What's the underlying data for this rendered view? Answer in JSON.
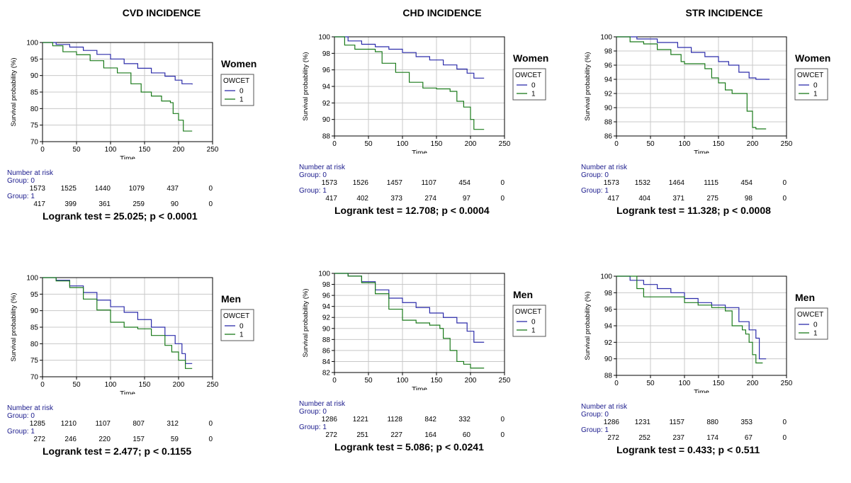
{
  "colors": {
    "group0": "#2c2caa",
    "group1": "#1a7a1a",
    "grid": "#c8c8c8",
    "axis": "#000000",
    "risk_text": "#1a1a8c"
  },
  "columns": [
    {
      "title": "CVD INCIDENCE"
    },
    {
      "title": "CHD INCIDENCE"
    },
    {
      "title": "STR INCIDENCE"
    }
  ],
  "chart_data": [
    {
      "type": "line",
      "id": "cvd-women",
      "sex_label": "Women",
      "xlabel": "Time",
      "ylabel": "Survival probability (%)",
      "xlim": [
        0,
        250
      ],
      "ylim": [
        70,
        100
      ],
      "x_ticks": [
        0,
        50,
        100,
        150,
        200,
        250
      ],
      "y_ticks": [
        70,
        75,
        80,
        85,
        90,
        95,
        100
      ],
      "grid": true,
      "legend_title": "OWCET",
      "legend_position": "right",
      "series": [
        {
          "name": "0",
          "points": [
            [
              0,
              100
            ],
            [
              20,
              99.4
            ],
            [
              40,
              98.6
            ],
            [
              60,
              97.6
            ],
            [
              80,
              96.4
            ],
            [
              100,
              95
            ],
            [
              120,
              93.6
            ],
            [
              140,
              92.2
            ],
            [
              160,
              90.8
            ],
            [
              180,
              89.8
            ],
            [
              195,
              88.6
            ],
            [
              205,
              87.5
            ],
            [
              220,
              87.3
            ]
          ]
        },
        {
          "name": "1",
          "points": [
            [
              0,
              100
            ],
            [
              15,
              99
            ],
            [
              30,
              97.2
            ],
            [
              50,
              96.3
            ],
            [
              70,
              94.5
            ],
            [
              90,
              92.3
            ],
            [
              110,
              90.8
            ],
            [
              130,
              87.5
            ],
            [
              145,
              85
            ],
            [
              160,
              83.8
            ],
            [
              175,
              82.3
            ],
            [
              188,
              81.8
            ],
            [
              192,
              78.5
            ],
            [
              200,
              76.5
            ],
            [
              207,
              73.2
            ],
            [
              220,
              73.2
            ]
          ]
        }
      ],
      "risk": {
        "title": "Number at risk",
        "group0_label": "Group: 0",
        "group1_label": "Group: 1",
        "group0": [
          "1573",
          "1525",
          "1440",
          "1079",
          "437",
          "0"
        ],
        "group1": [
          "417",
          "399",
          "361",
          "259",
          "90",
          "0"
        ]
      },
      "logrank": "Logrank test = 25.025; p < 0.0001"
    },
    {
      "type": "line",
      "id": "chd-women",
      "sex_label": "Women",
      "xlabel": "Time",
      "ylabel": "Survival probability (%)",
      "xlim": [
        0,
        250
      ],
      "ylim": [
        88,
        100
      ],
      "x_ticks": [
        0,
        50,
        100,
        150,
        200,
        250
      ],
      "y_ticks": [
        88,
        90,
        92,
        94,
        96,
        98,
        100
      ],
      "grid": true,
      "legend_title": "OWCET",
      "legend_position": "right",
      "series": [
        {
          "name": "0",
          "points": [
            [
              0,
              100
            ],
            [
              20,
              99.5
            ],
            [
              40,
              99.1
            ],
            [
              60,
              98.8
            ],
            [
              80,
              98.5
            ],
            [
              100,
              98.1
            ],
            [
              120,
              97.6
            ],
            [
              140,
              97.2
            ],
            [
              160,
              96.6
            ],
            [
              180,
              96.1
            ],
            [
              195,
              95.6
            ],
            [
              205,
              95
            ],
            [
              220,
              95
            ]
          ]
        },
        {
          "name": "1",
          "points": [
            [
              0,
              100
            ],
            [
              15,
              99
            ],
            [
              30,
              98.5
            ],
            [
              60,
              98.2
            ],
            [
              70,
              96.8
            ],
            [
              90,
              95.7
            ],
            [
              110,
              94.5
            ],
            [
              130,
              93.8
            ],
            [
              150,
              93.7
            ],
            [
              170,
              93.4
            ],
            [
              180,
              92.2
            ],
            [
              190,
              91.5
            ],
            [
              200,
              90
            ],
            [
              205,
              88.8
            ],
            [
              220,
              88.8
            ]
          ]
        }
      ],
      "risk": {
        "title": "Number at risk",
        "group0_label": "Group: 0",
        "group1_label": "Group: 1",
        "group0": [
          "1573",
          "1526",
          "1457",
          "1107",
          "454",
          "0"
        ],
        "group1": [
          "417",
          "402",
          "373",
          "274",
          "97",
          "0"
        ]
      },
      "logrank": "Logrank test = 12.708; p < 0.0004"
    },
    {
      "type": "line",
      "id": "str-women",
      "sex_label": "Women",
      "xlabel": "Time",
      "ylabel": "Survival probability (%)",
      "xlim": [
        0,
        250
      ],
      "ylim": [
        86,
        100
      ],
      "x_ticks": [
        0,
        50,
        100,
        150,
        200,
        250
      ],
      "y_ticks": [
        86,
        88,
        90,
        92,
        94,
        96,
        98,
        100
      ],
      "grid": true,
      "legend_title": "OWCET",
      "legend_position": "right",
      "series": [
        {
          "name": "0",
          "points": [
            [
              0,
              100
            ],
            [
              30,
              99.7
            ],
            [
              60,
              99.2
            ],
            [
              90,
              98.5
            ],
            [
              110,
              97.8
            ],
            [
              130,
              97.2
            ],
            [
              150,
              96.5
            ],
            [
              165,
              96
            ],
            [
              180,
              95
            ],
            [
              195,
              94.2
            ],
            [
              205,
              94
            ],
            [
              225,
              94
            ]
          ]
        },
        {
          "name": "1",
          "points": [
            [
              0,
              100
            ],
            [
              20,
              99.3
            ],
            [
              40,
              99
            ],
            [
              60,
              98.2
            ],
            [
              80,
              97.5
            ],
            [
              95,
              96.5
            ],
            [
              100,
              96.2
            ],
            [
              130,
              95.5
            ],
            [
              140,
              94.2
            ],
            [
              150,
              93.5
            ],
            [
              160,
              92.5
            ],
            [
              170,
              92
            ],
            [
              185,
              92
            ],
            [
              192,
              89.5
            ],
            [
              200,
              87.2
            ],
            [
              205,
              87
            ],
            [
              220,
              87
            ]
          ]
        }
      ],
      "risk": {
        "title": "Number at risk",
        "group0_label": "Group: 0",
        "group1_label": "Group: 1",
        "group0": [
          "1573",
          "1532",
          "1464",
          "1115",
          "454",
          "0"
        ],
        "group1": [
          "417",
          "404",
          "371",
          "275",
          "98",
          "0"
        ]
      },
      "logrank": "Logrank test = 11.328; p < 0.0008"
    },
    {
      "type": "line",
      "id": "cvd-men",
      "sex_label": "Men",
      "xlabel": "Time",
      "ylabel": "Survival probability (%)",
      "xlim": [
        0,
        250
      ],
      "ylim": [
        70,
        100
      ],
      "x_ticks": [
        0,
        50,
        100,
        150,
        200,
        250
      ],
      "y_ticks": [
        70,
        75,
        80,
        85,
        90,
        95,
        100
      ],
      "grid": true,
      "legend_title": "OWCET",
      "legend_position": "right",
      "series": [
        {
          "name": "0",
          "points": [
            [
              0,
              100
            ],
            [
              20,
              99.2
            ],
            [
              40,
              97.5
            ],
            [
              60,
              95.5
            ],
            [
              80,
              93.2
            ],
            [
              100,
              91.2
            ],
            [
              120,
              89.5
            ],
            [
              140,
              87.3
            ],
            [
              160,
              85
            ],
            [
              180,
              82.5
            ],
            [
              195,
              80
            ],
            [
              205,
              77
            ],
            [
              210,
              74
            ],
            [
              220,
              74
            ]
          ]
        },
        {
          "name": "1",
          "points": [
            [
              0,
              100
            ],
            [
              20,
              99
            ],
            [
              40,
              97
            ],
            [
              60,
              93.5
            ],
            [
              80,
              90.2
            ],
            [
              100,
              86.5
            ],
            [
              120,
              85
            ],
            [
              140,
              84.5
            ],
            [
              160,
              82.5
            ],
            [
              180,
              79.5
            ],
            [
              190,
              77.5
            ],
            [
              200,
              75
            ],
            [
              210,
              72.5
            ],
            [
              220,
              72.5
            ]
          ]
        }
      ],
      "risk": {
        "title": "Number at risk",
        "group0_label": "Group: 0",
        "group1_label": "Group: 1",
        "group0": [
          "1285",
          "1210",
          "1107",
          "807",
          "312",
          "0"
        ],
        "group1": [
          "272",
          "246",
          "220",
          "157",
          "59",
          "0"
        ]
      },
      "logrank": "Logrank test = 2.477; p < 0.1155"
    },
    {
      "type": "line",
      "id": "chd-men",
      "sex_label": "Men",
      "xlabel": "Time",
      "ylabel": "Survival probability (%)",
      "xlim": [
        0,
        250
      ],
      "ylim": [
        82,
        100
      ],
      "x_ticks": [
        0,
        50,
        100,
        150,
        200,
        250
      ],
      "y_ticks": [
        82,
        84,
        86,
        88,
        90,
        92,
        94,
        96,
        98,
        100
      ],
      "grid": true,
      "legend_title": "OWCET",
      "legend_position": "right",
      "series": [
        {
          "name": "0",
          "points": [
            [
              0,
              100
            ],
            [
              20,
              99.5
            ],
            [
              40,
              98.5
            ],
            [
              60,
              97
            ],
            [
              80,
              95.5
            ],
            [
              100,
              94.7
            ],
            [
              120,
              93.8
            ],
            [
              140,
              92.8
            ],
            [
              160,
              92
            ],
            [
              180,
              91
            ],
            [
              195,
              89.5
            ],
            [
              205,
              87.5
            ],
            [
              220,
              87.5
            ]
          ]
        },
        {
          "name": "1",
          "points": [
            [
              0,
              100
            ],
            [
              20,
              99.5
            ],
            [
              40,
              98.3
            ],
            [
              60,
              96.3
            ],
            [
              80,
              93.5
            ],
            [
              100,
              91.5
            ],
            [
              120,
              91
            ],
            [
              140,
              90.6
            ],
            [
              155,
              90
            ],
            [
              160,
              88.2
            ],
            [
              170,
              86
            ],
            [
              180,
              84
            ],
            [
              190,
              83.5
            ],
            [
              200,
              82.8
            ],
            [
              220,
              82.8
            ]
          ]
        }
      ],
      "risk": {
        "title": "Number at risk",
        "group0_label": "Group: 0",
        "group1_label": "Group: 1",
        "group0": [
          "1286",
          "1221",
          "1128",
          "842",
          "332",
          "0"
        ],
        "group1": [
          "272",
          "251",
          "227",
          "164",
          "60",
          "0"
        ]
      },
      "logrank": "Logrank test = 5.086; p < 0.0241"
    },
    {
      "type": "line",
      "id": "str-men",
      "sex_label": "Men",
      "xlabel": "Time",
      "ylabel": "Survival probability (%)",
      "xlim": [
        0,
        250
      ],
      "ylim": [
        88,
        100
      ],
      "x_ticks": [
        0,
        50,
        100,
        150,
        200,
        250
      ],
      "y_ticks": [
        88,
        90,
        92,
        94,
        96,
        98,
        100
      ],
      "grid": true,
      "legend_title": "OWCET",
      "legend_position": "right",
      "series": [
        {
          "name": "0",
          "points": [
            [
              0,
              100
            ],
            [
              20,
              99.5
            ],
            [
              40,
              99
            ],
            [
              60,
              98.5
            ],
            [
              80,
              98
            ],
            [
              100,
              97.3
            ],
            [
              120,
              96.8
            ],
            [
              140,
              96.5
            ],
            [
              160,
              96.2
            ],
            [
              180,
              94.5
            ],
            [
              195,
              93.5
            ],
            [
              205,
              92.5
            ],
            [
              210,
              90
            ],
            [
              220,
              90
            ]
          ]
        },
        {
          "name": "1",
          "points": [
            [
              0,
              100
            ],
            [
              30,
              98.5
            ],
            [
              40,
              97.5
            ],
            [
              80,
              97.5
            ],
            [
              100,
              96.8
            ],
            [
              120,
              96.5
            ],
            [
              140,
              96.2
            ],
            [
              160,
              95.8
            ],
            [
              170,
              94
            ],
            [
              185,
              93.5
            ],
            [
              190,
              93
            ],
            [
              195,
              92
            ],
            [
              200,
              90.5
            ],
            [
              205,
              89.5
            ],
            [
              215,
              89.5
            ]
          ]
        }
      ],
      "risk": {
        "title": "Number at risk",
        "group0_label": "Group: 0",
        "group1_label": "Group: 1",
        "group0": [
          "1286",
          "1231",
          "1157",
          "880",
          "353",
          "0"
        ],
        "group1": [
          "272",
          "252",
          "237",
          "174",
          "67",
          "0"
        ]
      },
      "logrank": "Logrank test = 0.433; p < 0.511"
    }
  ]
}
